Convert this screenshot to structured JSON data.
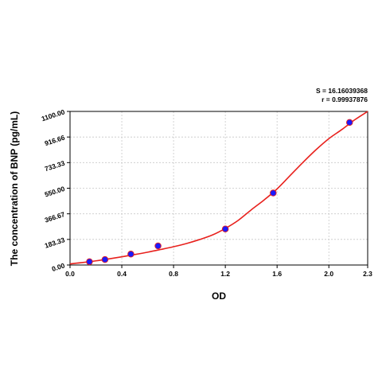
{
  "chart_data": {
    "type": "scatter",
    "title": "",
    "xlabel": "OD",
    "ylabel": "The concentration of BNP (pg/mL)",
    "xlim": [
      0.0,
      2.3
    ],
    "ylim": [
      0.0,
      1100.0
    ],
    "x_ticks": [
      "0.0",
      "0.4",
      "0.8",
      "1.2",
      "1.6",
      "2.0",
      "2.3"
    ],
    "x_tick_values": [
      0.0,
      0.4,
      0.8,
      1.2,
      1.6,
      2.0,
      2.3
    ],
    "y_ticks": [
      "0.00",
      "183.33",
      "366.67",
      "550.00",
      "733.33",
      "916.66",
      "1100.00"
    ],
    "y_tick_values": [
      0.0,
      183.33,
      366.67,
      550.0,
      733.33,
      916.66,
      1100.0
    ],
    "grid": true,
    "stats": {
      "s": "S = 16.16039368",
      "r": "r = 0.99937876"
    },
    "points": {
      "x": [
        0.15,
        0.27,
        0.47,
        0.68,
        1.2,
        1.57,
        2.16
      ],
      "y": [
        23.44,
        39.06,
        78.13,
        136.72,
        257.81,
        515.63,
        1020.83
      ]
    },
    "curve": {
      "x": [
        0.0,
        0.1,
        0.2,
        0.3,
        0.4,
        0.5,
        0.6,
        0.7,
        0.8,
        0.9,
        1.0,
        1.1,
        1.2,
        1.3,
        1.4,
        1.5,
        1.6,
        1.7,
        1.8,
        1.9,
        2.0,
        2.1,
        2.2,
        2.3
      ],
      "y": [
        8,
        18,
        30,
        44,
        59,
        75,
        92,
        111,
        131,
        154,
        182,
        215,
        262,
        320,
        395,
        466,
        545,
        640,
        735,
        825,
        905,
        970,
        1040,
        1100
      ]
    },
    "colors": {
      "curve": "#e8211d",
      "marker": "#1a1aff",
      "grid": "#c8c8c8"
    }
  }
}
